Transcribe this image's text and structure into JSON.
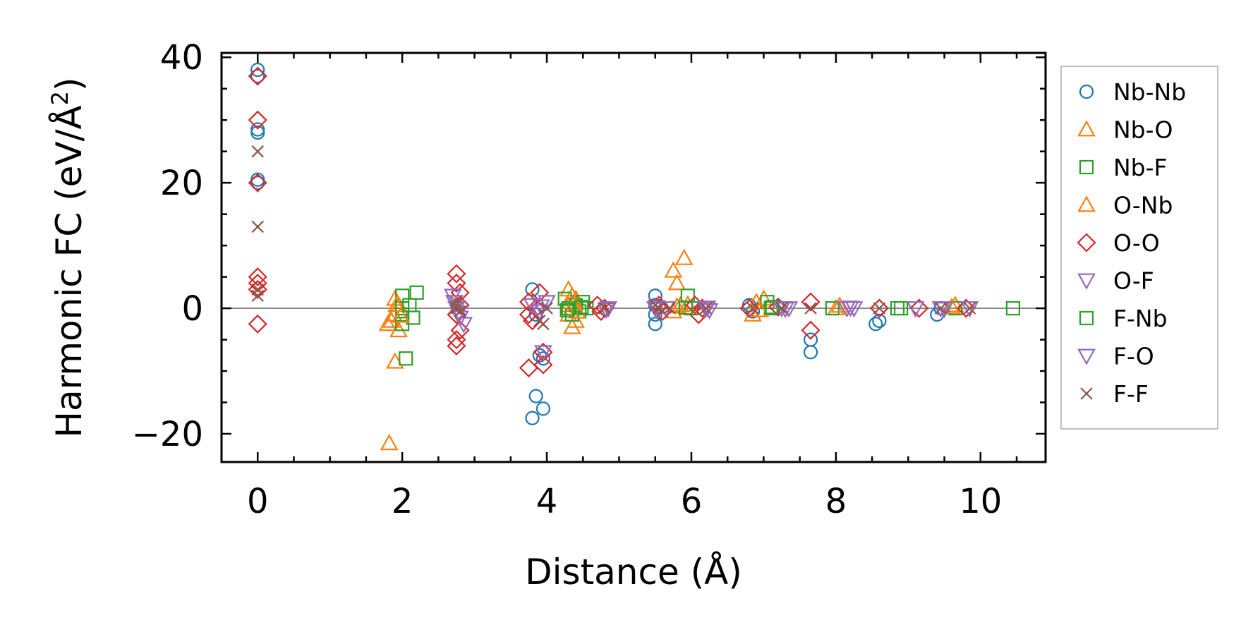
{
  "chart_data": {
    "type": "scatter",
    "xlabel": "Distance (Å)",
    "ylabel_main": "Harmonic FC (eV/Å",
    "ylabel_sup": "2",
    "ylabel_close": ")",
    "xlim": [
      -0.5,
      10.9
    ],
    "ylim": [
      -24.5,
      40.7
    ],
    "xticks": [
      0,
      2,
      4,
      6,
      8,
      10
    ],
    "xtick_labels": [
      "0",
      "2",
      "4",
      "6",
      "8",
      "10"
    ],
    "yticks": [
      -20,
      0,
      20,
      40
    ],
    "ytick_labels": [
      "−20",
      "0",
      "20",
      "40"
    ],
    "zero_line": true,
    "legend_position": "right",
    "series": [
      {
        "name": "Nb-Nb",
        "marker": "circle",
        "color": "#1f77b4",
        "points": [
          [
            0,
            38
          ],
          [
            0,
            37
          ],
          [
            0,
            28.5
          ],
          [
            0,
            28
          ],
          [
            0,
            20.5
          ],
          [
            0,
            20
          ],
          [
            3.8,
            3
          ],
          [
            3.85,
            -1
          ],
          [
            3.9,
            -7.5
          ],
          [
            3.95,
            -8
          ],
          [
            3.8,
            -17.5
          ],
          [
            3.85,
            -14
          ],
          [
            3.95,
            -16
          ],
          [
            5.5,
            2
          ],
          [
            5.5,
            0.5
          ],
          [
            5.5,
            -1
          ],
          [
            5.5,
            -2.5
          ],
          [
            6.8,
            0.5
          ],
          [
            6.85,
            -0.5
          ],
          [
            7.65,
            -5
          ],
          [
            7.65,
            -7
          ],
          [
            8.55,
            -2.5
          ],
          [
            8.6,
            -2
          ],
          [
            9.4,
            -1
          ],
          [
            9.45,
            0
          ]
        ]
      },
      {
        "name": "Nb-O",
        "marker": "triangle-up",
        "color": "#ff7f0e",
        "points": [
          [
            1.8,
            -2.5
          ],
          [
            1.82,
            -21.5
          ],
          [
            1.85,
            -2
          ],
          [
            1.9,
            1.5
          ],
          [
            1.95,
            0.5
          ],
          [
            1.95,
            -3.5
          ],
          [
            1.9,
            -8.5
          ],
          [
            1.88,
            -1
          ],
          [
            4.3,
            3
          ],
          [
            4.35,
            2
          ],
          [
            4.3,
            0.5
          ],
          [
            4.3,
            -1
          ],
          [
            4.35,
            -3
          ],
          [
            4.4,
            -2
          ],
          [
            4.4,
            1.5
          ],
          [
            5.75,
            6
          ],
          [
            5.8,
            4
          ],
          [
            5.9,
            8
          ],
          [
            5.75,
            -0.5
          ],
          [
            5.85,
            0.5
          ],
          [
            6.85,
            -1
          ],
          [
            6.9,
            1
          ],
          [
            7.0,
            1.5
          ],
          [
            8.0,
            0
          ],
          [
            9.65,
            0.5
          ]
        ]
      },
      {
        "name": "Nb-F",
        "marker": "square",
        "color": "#2ca02c",
        "points": [
          [
            2.0,
            2
          ],
          [
            2.0,
            0
          ],
          [
            2.0,
            -1
          ],
          [
            2.0,
            -2.5
          ],
          [
            2.05,
            -8
          ],
          [
            2.15,
            -1.5
          ],
          [
            2.2,
            2.5
          ],
          [
            4.25,
            1.5
          ],
          [
            4.3,
            0
          ],
          [
            4.35,
            -1
          ],
          [
            4.4,
            0.5
          ],
          [
            4.45,
            -0.5
          ],
          [
            4.5,
            1
          ],
          [
            4.55,
            0
          ],
          [
            5.95,
            2
          ],
          [
            6.0,
            0
          ],
          [
            7.05,
            1
          ],
          [
            7.1,
            0
          ],
          [
            7.95,
            0
          ],
          [
            8.85,
            0
          ],
          [
            9.65,
            0
          ],
          [
            10.45,
            0
          ]
        ]
      },
      {
        "name": "O-Nb",
        "marker": "triangle-up",
        "color": "#ff7f0e",
        "points": [
          [
            1.92,
            0.5
          ],
          [
            1.98,
            -1.2
          ],
          [
            4.38,
            0.8
          ],
          [
            4.42,
            -0.5
          ],
          [
            5.8,
            0.3
          ],
          [
            5.95,
            0.6
          ],
          [
            6.95,
            -0.3
          ],
          [
            8.05,
            0.4
          ],
          [
            9.6,
            0.2
          ]
        ]
      },
      {
        "name": "O-O",
        "marker": "diamond",
        "color": "#d62728",
        "points": [
          [
            0,
            37
          ],
          [
            0,
            30
          ],
          [
            0,
            20
          ],
          [
            0,
            5
          ],
          [
            0,
            4
          ],
          [
            0,
            3
          ],
          [
            0,
            -2.5
          ],
          [
            2.75,
            5.5
          ],
          [
            2.75,
            4
          ],
          [
            2.8,
            2.5
          ],
          [
            2.8,
            0.5
          ],
          [
            2.75,
            -1
          ],
          [
            2.8,
            -3.5
          ],
          [
            2.75,
            -5
          ],
          [
            2.75,
            -6
          ],
          [
            3.75,
            1
          ],
          [
            3.75,
            -1
          ],
          [
            3.8,
            -2
          ],
          [
            3.75,
            -9.5
          ],
          [
            3.95,
            -9
          ],
          [
            3.95,
            -7
          ],
          [
            3.9,
            2.5
          ],
          [
            3.85,
            0
          ],
          [
            4.7,
            0.5
          ],
          [
            4.75,
            -0.5
          ],
          [
            4.8,
            0
          ],
          [
            5.55,
            0.5
          ],
          [
            5.6,
            -0.5
          ],
          [
            6.05,
            0.5
          ],
          [
            6.1,
            -1
          ],
          [
            6.15,
            0
          ],
          [
            6.8,
            0
          ],
          [
            7.2,
            0.2
          ],
          [
            7.65,
            1
          ],
          [
            7.65,
            -3.5
          ],
          [
            8.6,
            0
          ],
          [
            9.15,
            0
          ],
          [
            9.8,
            0
          ]
        ]
      },
      {
        "name": "O-F",
        "marker": "triangle-down",
        "color": "#9467bd",
        "points": [
          [
            2.7,
            2
          ],
          [
            2.75,
            0
          ],
          [
            2.8,
            -1.5
          ],
          [
            2.85,
            -2.5
          ],
          [
            3.8,
            0.5
          ],
          [
            3.9,
            -0.5
          ],
          [
            3.95,
            -7
          ],
          [
            4.0,
            1
          ],
          [
            4.85,
            0
          ],
          [
            5.5,
            0
          ],
          [
            5.65,
            0
          ],
          [
            6.2,
            0
          ],
          [
            6.25,
            -0.3
          ],
          [
            7.25,
            0
          ],
          [
            7.35,
            0
          ],
          [
            8.15,
            0
          ],
          [
            8.25,
            0
          ],
          [
            9.1,
            0
          ],
          [
            9.45,
            0
          ],
          [
            9.85,
            0
          ]
        ]
      },
      {
        "name": "F-Nb",
        "marker": "square",
        "color": "#2ca02c",
        "points": [
          [
            2.1,
            0.5
          ],
          [
            4.28,
            -0.3
          ],
          [
            4.48,
            0.2
          ],
          [
            5.92,
            0.1
          ],
          [
            7.12,
            0.2
          ],
          [
            8.9,
            0
          ]
        ]
      },
      {
        "name": "F-O",
        "marker": "triangle-down",
        "color": "#9467bd",
        "points": [
          [
            2.72,
            1
          ],
          [
            2.78,
            -0.7
          ],
          [
            3.92,
            0.3
          ],
          [
            4.82,
            -0.2
          ],
          [
            5.52,
            0.2
          ],
          [
            6.22,
            0.1
          ],
          [
            7.3,
            -0.1
          ],
          [
            8.2,
            0.1
          ],
          [
            9.5,
            -0.1
          ]
        ]
      },
      {
        "name": "F-F",
        "marker": "x",
        "color": "#8c564b",
        "points": [
          [
            0,
            25
          ],
          [
            0,
            13
          ],
          [
            0,
            3
          ],
          [
            0,
            2
          ],
          [
            2.75,
            1
          ],
          [
            2.75,
            0.5
          ],
          [
            2.75,
            0
          ],
          [
            2.8,
            -0.5
          ],
          [
            3.9,
            -2
          ],
          [
            3.95,
            -2.5
          ],
          [
            4.0,
            0
          ],
          [
            4.8,
            0
          ],
          [
            5.5,
            0.5
          ],
          [
            5.55,
            0
          ],
          [
            5.6,
            -0.5
          ],
          [
            5.7,
            0
          ],
          [
            6.2,
            0
          ],
          [
            6.85,
            0
          ],
          [
            7.25,
            0
          ],
          [
            7.65,
            0
          ],
          [
            8.6,
            0
          ],
          [
            9.45,
            0
          ],
          [
            9.85,
            0
          ]
        ]
      }
    ]
  }
}
